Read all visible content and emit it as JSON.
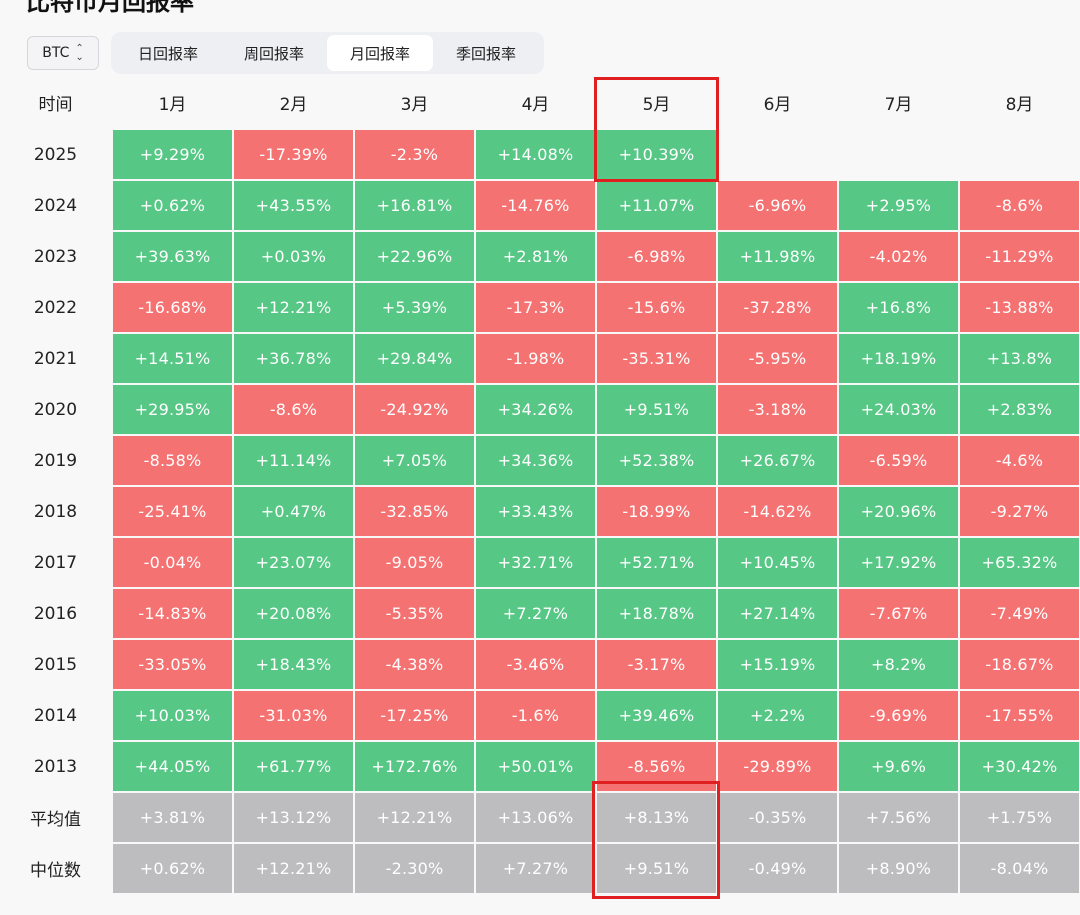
{
  "page": {
    "title": "比特币月回报率"
  },
  "asset_select": {
    "value": "BTC"
  },
  "tabs": [
    {
      "label": "日回报率",
      "active": false
    },
    {
      "label": "周回报率",
      "active": false
    },
    {
      "label": "月回报率",
      "active": true
    },
    {
      "label": "季回报率",
      "active": false
    }
  ],
  "colors": {
    "positive": "#56c785",
    "negative": "#f57272",
    "stat": "#bdbdbf",
    "highlight": "#e02020"
  },
  "table": {
    "corner_label": "时间",
    "months": [
      "1月",
      "2月",
      "3月",
      "4月",
      "5月",
      "6月",
      "7月",
      "8月"
    ],
    "rows": [
      {
        "year": "2025",
        "values": [
          "+9.29%",
          "-17.39%",
          "-2.3%",
          "+14.08%",
          "+10.39%",
          "",
          "",
          ""
        ]
      },
      {
        "year": "2024",
        "values": [
          "+0.62%",
          "+43.55%",
          "+16.81%",
          "-14.76%",
          "+11.07%",
          "-6.96%",
          "+2.95%",
          "-8.6%"
        ]
      },
      {
        "year": "2023",
        "values": [
          "+39.63%",
          "+0.03%",
          "+22.96%",
          "+2.81%",
          "-6.98%",
          "+11.98%",
          "-4.02%",
          "-11.29%"
        ]
      },
      {
        "year": "2022",
        "values": [
          "-16.68%",
          "+12.21%",
          "+5.39%",
          "-17.3%",
          "-15.6%",
          "-37.28%",
          "+16.8%",
          "-13.88%"
        ]
      },
      {
        "year": "2021",
        "values": [
          "+14.51%",
          "+36.78%",
          "+29.84%",
          "-1.98%",
          "-35.31%",
          "-5.95%",
          "+18.19%",
          "+13.8%"
        ]
      },
      {
        "year": "2020",
        "values": [
          "+29.95%",
          "-8.6%",
          "-24.92%",
          "+34.26%",
          "+9.51%",
          "-3.18%",
          "+24.03%",
          "+2.83%"
        ]
      },
      {
        "year": "2019",
        "values": [
          "-8.58%",
          "+11.14%",
          "+7.05%",
          "+34.36%",
          "+52.38%",
          "+26.67%",
          "-6.59%",
          "-4.6%"
        ]
      },
      {
        "year": "2018",
        "values": [
          "-25.41%",
          "+0.47%",
          "-32.85%",
          "+33.43%",
          "-18.99%",
          "-14.62%",
          "+20.96%",
          "-9.27%"
        ]
      },
      {
        "year": "2017",
        "values": [
          "-0.04%",
          "+23.07%",
          "-9.05%",
          "+32.71%",
          "+52.71%",
          "+10.45%",
          "+17.92%",
          "+65.32%"
        ]
      },
      {
        "year": "2016",
        "values": [
          "-14.83%",
          "+20.08%",
          "-5.35%",
          "+7.27%",
          "+18.78%",
          "+27.14%",
          "-7.67%",
          "-7.49%"
        ]
      },
      {
        "year": "2015",
        "values": [
          "-33.05%",
          "+18.43%",
          "-4.38%",
          "-3.46%",
          "-3.17%",
          "+15.19%",
          "+8.2%",
          "-18.67%"
        ]
      },
      {
        "year": "2014",
        "values": [
          "+10.03%",
          "-31.03%",
          "-17.25%",
          "-1.6%",
          "+39.46%",
          "+2.2%",
          "-9.69%",
          "-17.55%"
        ]
      },
      {
        "year": "2013",
        "values": [
          "+44.05%",
          "+61.77%",
          "+172.76%",
          "+50.01%",
          "-8.56%",
          "-29.89%",
          "+9.6%",
          "+30.42%"
        ]
      }
    ],
    "extra_col_colors": [
      "pos",
      "pos",
      "neg",
      "pos",
      "neg",
      "pos",
      "pos",
      "pos",
      "pos",
      "neg",
      "pos"
    ],
    "stats": [
      {
        "label": "平均值",
        "values": [
          "+3.81%",
          "+13.12%",
          "+12.21%",
          "+13.06%",
          "+8.13%",
          "-0.35%",
          "+7.56%",
          "+1.75%"
        ]
      },
      {
        "label": "中位数",
        "values": [
          "+0.62%",
          "+12.21%",
          "-2.30%",
          "+7.27%",
          "+9.51%",
          "-0.49%",
          "+8.90%",
          "-8.04%"
        ]
      }
    ]
  }
}
